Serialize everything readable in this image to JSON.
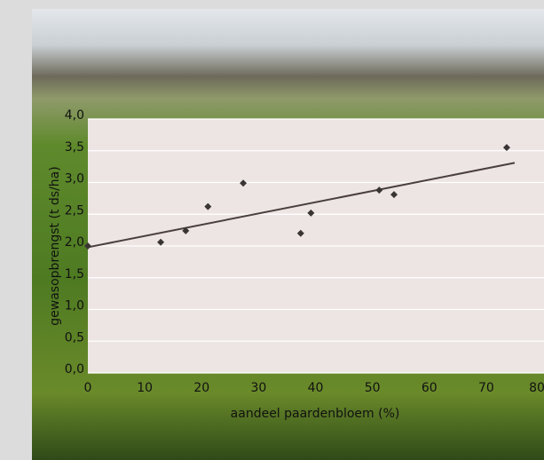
{
  "chart_data": {
    "type": "scatter",
    "x_label": "aandeel paardenbloem (%)",
    "y_label": "gewasopbrengst (t ds/ha)",
    "x": [
      0,
      12.8,
      17.2,
      21.1,
      27.3,
      37.4,
      39.2,
      51.2,
      53.8,
      73.6
    ],
    "values": [
      2.0,
      2.06,
      2.24,
      2.62,
      2.99,
      2.2,
      2.52,
      2.88,
      2.81,
      3.55
    ],
    "color": "#3a3535",
    "trendline": {
      "x": [
        0,
        75
      ],
      "y": [
        1.98,
        3.31
      ],
      "color": "#4a3f3f"
    },
    "xlim": [
      0,
      80
    ],
    "xticks": [
      0,
      10,
      20,
      30,
      40,
      50,
      60,
      70,
      80
    ],
    "ylim": [
      0,
      4
    ],
    "yticks": [
      {
        "value": 0,
        "label": "0,0"
      },
      {
        "value": 0.5,
        "label": "0,5"
      },
      {
        "value": 1,
        "label": "1,0"
      },
      {
        "value": 1.5,
        "label": "1,5"
      },
      {
        "value": 2,
        "label": "2,0"
      },
      {
        "value": 2.5,
        "label": "2,5"
      },
      {
        "value": 3,
        "label": "3,0"
      },
      {
        "value": 3.5,
        "label": "3,5"
      },
      {
        "value": 4,
        "label": "4,0"
      }
    ],
    "grid": true
  }
}
